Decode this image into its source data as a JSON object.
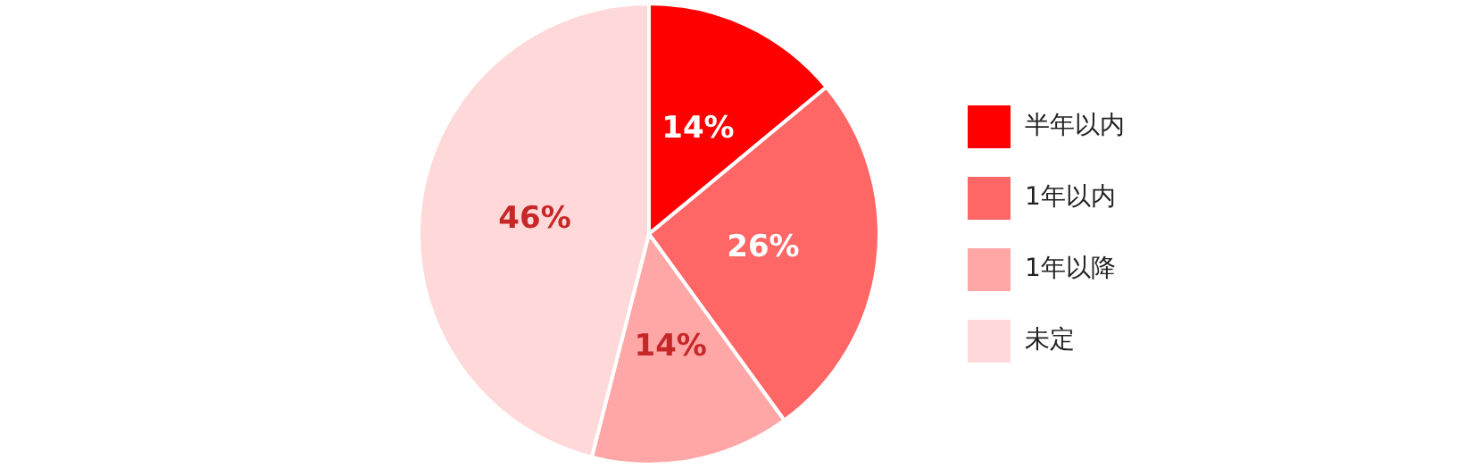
{
  "chart_data": {
    "type": "pie",
    "categories": [
      "半年以内",
      "1年以内",
      "1年以降",
      "未定"
    ],
    "values": [
      14,
      26,
      14,
      46
    ],
    "colors": [
      "#ff0000",
      "#ff6666",
      "#ffa6a6",
      "#ffd9d9"
    ],
    "value_labels": [
      "14%",
      "26%",
      "14%",
      "46%"
    ],
    "legend": "right"
  }
}
